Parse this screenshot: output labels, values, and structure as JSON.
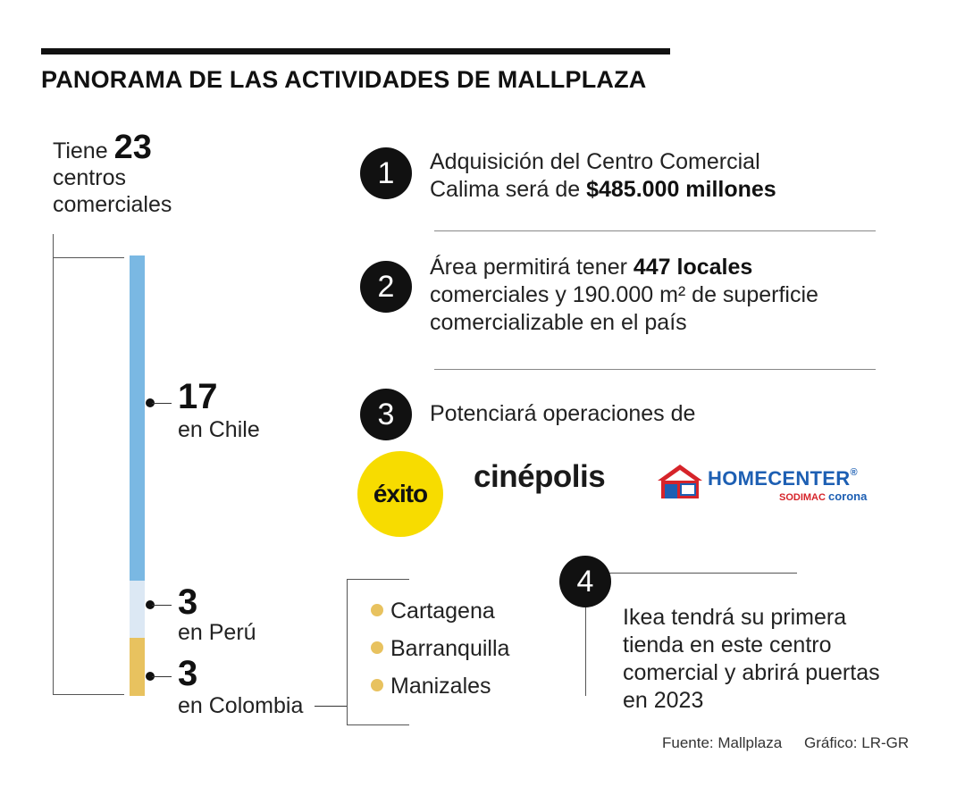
{
  "title": "PANORAMA DE LAS ACTIVIDADES DE MALLPLAZA",
  "summary": {
    "prefix": "Tiene",
    "count": "23",
    "line2": "centros",
    "line3": "comerciales"
  },
  "countries": [
    {
      "count": "17",
      "name": "en Chile",
      "value": 17,
      "color": "#7ab8e3"
    },
    {
      "count": "3",
      "name": "en Perú",
      "value": 3,
      "color": "#dce8f4"
    },
    {
      "count": "3",
      "name": "en Colombia",
      "value": 3,
      "color": "#e8c25f"
    }
  ],
  "cities": [
    "Cartagena",
    "Barranquilla",
    "Manizales"
  ],
  "items": [
    {
      "num": "1",
      "text_a": "Adquisición del Centro Comercial",
      "text_b": "Calima será de ",
      "bold": "$485.000 millones"
    },
    {
      "num": "2",
      "text_a": "Área permitirá tener ",
      "bold": "447 locales",
      "text_b": "comerciales y 190.000 m² de superficie",
      "text_c": "comercializable en el país"
    },
    {
      "num": "3",
      "text_a": "Potenciará operaciones de"
    },
    {
      "num": "4",
      "text_a": "Ikea tendrá su primera",
      "text_b": "tienda en este centro",
      "text_c": "comercial y abrirá puertas",
      "text_d": "en 2023"
    }
  ],
  "logos": {
    "exito": "éxito",
    "cinepolis": "cinépolis",
    "homecenter": "HOMECENTER",
    "homecenter_reg": "®",
    "sodimac": "SODIMAC",
    "corona": "corona"
  },
  "colors": {
    "chile": "#7ab8e3",
    "peru": "#dce8f4",
    "colombia": "#e8c25f",
    "exito_yellow": "#f7dc00",
    "homecenter_blue": "#1d5fb3",
    "sodimac_red": "#d6242a"
  },
  "footer": {
    "source": "Fuente: Mallplaza",
    "credit": "Gráfico: LR-GR"
  }
}
